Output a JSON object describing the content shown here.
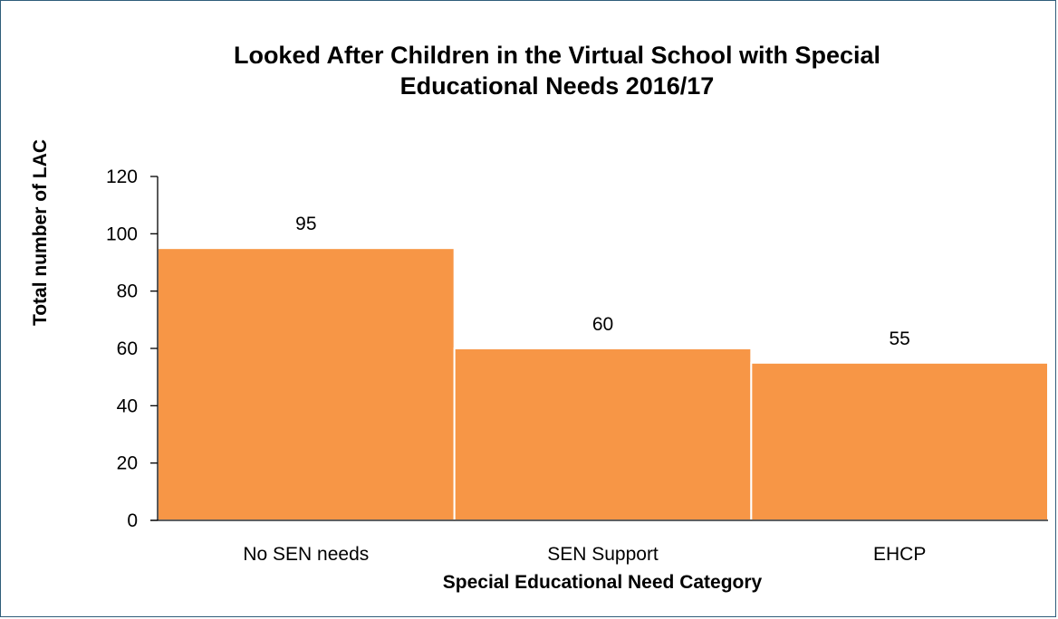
{
  "chart_data": {
    "type": "bar",
    "title_lines": [
      "Looked After Children in the Virtual School with Special",
      "Educational Needs 2016/17"
    ],
    "xlabel": "Special Educational Need Category",
    "ylabel": "Total number of LAC",
    "categories": [
      "No SEN needs",
      "SEN Support",
      "EHCP"
    ],
    "values": [
      95,
      60,
      55
    ],
    "data_labels": [
      "95",
      "60",
      "55"
    ],
    "ylim": [
      0,
      120
    ],
    "yticks": [
      0,
      20,
      40,
      60,
      80,
      100,
      120
    ],
    "bar_color": "#f79646",
    "grid": false,
    "legend": "none"
  }
}
